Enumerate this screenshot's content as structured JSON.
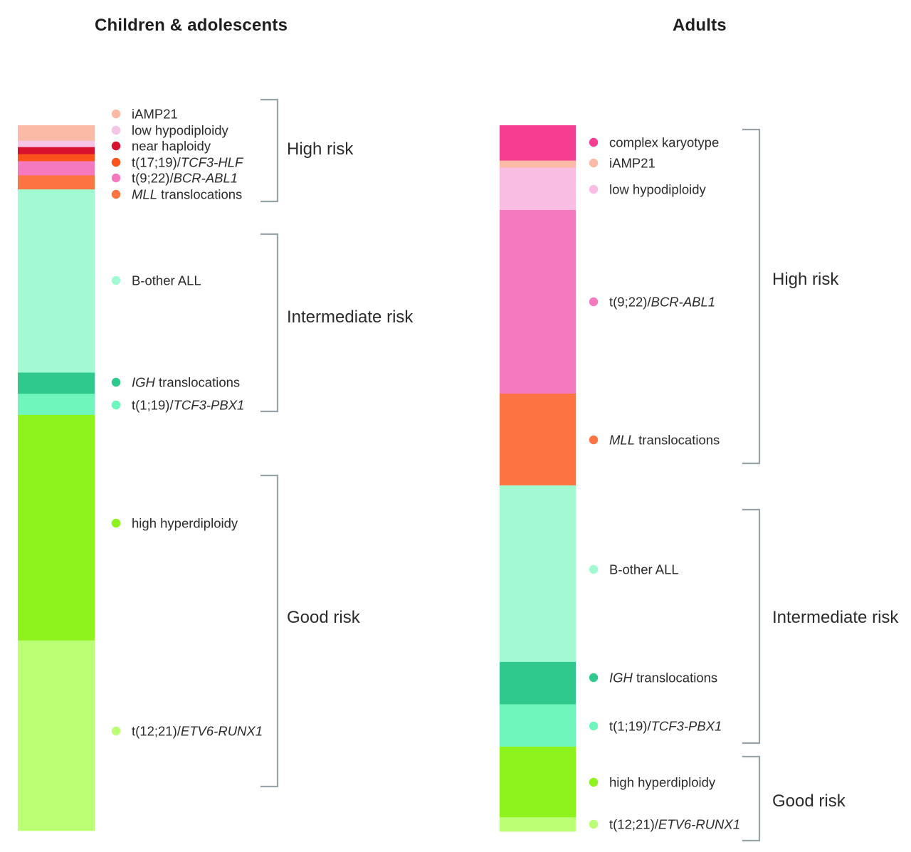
{
  "chart_data": [
    {
      "type": "stacked-bar",
      "title": "Children & adolescents",
      "unit": "approx. share of cases (%)",
      "segments": [
        {
          "label": "iAMP21",
          "value": 2.2,
          "color": "#fbbaa6"
        },
        {
          "label": "low hypodiploidy",
          "value": 0.9,
          "color": "#f6c4e6"
        },
        {
          "label": "near haploidy",
          "value": 1.0,
          "color": "#d8112f"
        },
        {
          "label": "t(17;19)/TCF3-HLF",
          "value": 1.0,
          "color": "#fa541c"
        },
        {
          "label": "t(9;22)/BCR-ABL1",
          "value": 2.0,
          "color": "#f579bf"
        },
        {
          "label": "MLL translocations",
          "value": 2.0,
          "color": "#fd7442"
        },
        {
          "label": "B-other ALL",
          "value": 26.0,
          "color": "#a2fad2"
        },
        {
          "label": "IGH translocations",
          "value": 3.0,
          "color": "#2fc98d"
        },
        {
          "label": "t(1;19)/TCF3-PBX1",
          "value": 3.0,
          "color": "#6ff6bd"
        },
        {
          "label": "high hyperdiploidy",
          "value": 32.0,
          "color": "#8ef21d"
        },
        {
          "label": "t(12;21)/ETV6-RUNX1",
          "value": 27.0,
          "color": "#baff74"
        }
      ],
      "legend": [
        {
          "label_parts": [
            {
              "t": "iAMP21",
              "i": false
            }
          ],
          "color": "#fbbaa6"
        },
        {
          "label_parts": [
            {
              "t": "low hypodiploidy",
              "i": false
            }
          ],
          "color": "#f6c4e6"
        },
        {
          "label_parts": [
            {
              "t": "near haploidy",
              "i": false
            }
          ],
          "color": "#d8112f"
        },
        {
          "label_parts": [
            {
              "t": "t(17;19)/",
              "i": false
            },
            {
              "t": "TCF3-HLF",
              "i": true
            }
          ],
          "color": "#fa541c"
        },
        {
          "label_parts": [
            {
              "t": "t(9;22)/",
              "i": false
            },
            {
              "t": "BCR-ABL1",
              "i": true
            }
          ],
          "color": "#f579bf"
        },
        {
          "label_parts": [
            {
              "t": "MLL",
              "i": true
            },
            {
              "t": " translocations",
              "i": false
            }
          ],
          "color": "#fd7442"
        },
        {
          "label_parts": [
            {
              "t": "B-other ALL",
              "i": false
            }
          ],
          "color": "#a2fad2"
        },
        {
          "label_parts": [
            {
              "t": "IGH",
              "i": true
            },
            {
              "t": " translocations",
              "i": false
            }
          ],
          "color": "#2fc98d"
        },
        {
          "label_parts": [
            {
              "t": "t(1;19)/",
              "i": false
            },
            {
              "t": "TCF3-PBX1",
              "i": true
            }
          ],
          "color": "#6ff6bd"
        },
        {
          "label_parts": [
            {
              "t": "high hyperdiploidy",
              "i": false
            }
          ],
          "color": "#8ef21d"
        },
        {
          "label_parts": [
            {
              "t": "t(12;21)/",
              "i": false
            },
            {
              "t": "ETV6-RUNX1",
              "i": true
            }
          ],
          "color": "#baff74"
        }
      ],
      "risk_groups": [
        {
          "label": "High risk"
        },
        {
          "label": "Intermediate risk"
        },
        {
          "label": "Good risk"
        }
      ]
    },
    {
      "type": "stacked-bar",
      "title": "Adults",
      "unit": "approx. share of cases (%)",
      "segments": [
        {
          "label": "complex karyotype",
          "value": 5.0,
          "color": "#f53d91"
        },
        {
          "label": "iAMP21",
          "value": 1.0,
          "color": "#fbbaa6"
        },
        {
          "label": "low hypodiploidy",
          "value": 6.0,
          "color": "#f9bde4"
        },
        {
          "label": "t(9;22)/BCR-ABL1",
          "value": 26.0,
          "color": "#f579bf"
        },
        {
          "label": "MLL translocations",
          "value": 13.0,
          "color": "#fd7442"
        },
        {
          "label": "B-other ALL",
          "value": 25.0,
          "color": "#a2fad2"
        },
        {
          "label": "IGH translocations",
          "value": 6.0,
          "color": "#2fc98d"
        },
        {
          "label": "t(1;19)/TCF3-PBX1",
          "value": 6.0,
          "color": "#6ff6bd"
        },
        {
          "label": "high hyperdiploidy",
          "value": 10.0,
          "color": "#8ef21d"
        },
        {
          "label": "t(12;21)/ETV6-RUNX1",
          "value": 2.0,
          "color": "#baff74"
        }
      ],
      "legend": [
        {
          "label_parts": [
            {
              "t": "complex karyotype",
              "i": false
            }
          ],
          "color": "#f53d91"
        },
        {
          "label_parts": [
            {
              "t": "iAMP21",
              "i": false
            }
          ],
          "color": "#fbbaa6"
        },
        {
          "label_parts": [
            {
              "t": "low hypodiploidy",
              "i": false
            }
          ],
          "color": "#f9bde4"
        },
        {
          "label_parts": [
            {
              "t": "t(9;22)/",
              "i": false
            },
            {
              "t": "BCR-ABL1",
              "i": true
            }
          ],
          "color": "#f579bf"
        },
        {
          "label_parts": [
            {
              "t": "MLL",
              "i": true
            },
            {
              "t": " translocations",
              "i": false
            }
          ],
          "color": "#fd7442"
        },
        {
          "label_parts": [
            {
              "t": "B-other ALL",
              "i": false
            }
          ],
          "color": "#a2fad2"
        },
        {
          "label_parts": [
            {
              "t": "IGH",
              "i": true
            },
            {
              "t": " translocations",
              "i": false
            }
          ],
          "color": "#2fc98d"
        },
        {
          "label_parts": [
            {
              "t": "t(1;19)/",
              "i": false
            },
            {
              "t": "TCF3-PBX1",
              "i": true
            }
          ],
          "color": "#6ff6bd"
        },
        {
          "label_parts": [
            {
              "t": "high hyperdiploidy",
              "i": false
            }
          ],
          "color": "#8ef21d"
        },
        {
          "label_parts": [
            {
              "t": "t(12;21)/",
              "i": false
            },
            {
              "t": "ETV6-RUNX1",
              "i": true
            }
          ],
          "color": "#baff74"
        }
      ],
      "risk_groups": [
        {
          "label": "High risk"
        },
        {
          "label": "Intermediate risk"
        },
        {
          "label": "Good risk"
        }
      ]
    }
  ],
  "bracket_color": "#97a3a6",
  "text_color": "#2b2b2b"
}
